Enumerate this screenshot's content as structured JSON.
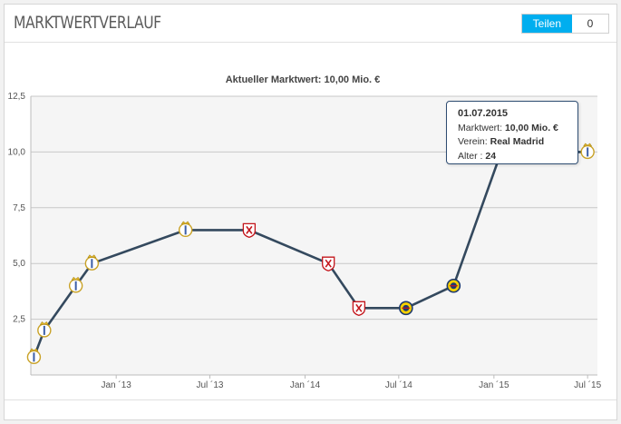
{
  "header": {
    "title": "MARKTWERTVERLAUF",
    "share_label": "Teilen",
    "share_count": "0"
  },
  "colors": {
    "line": "#34495e",
    "grid": "#c8c8c8",
    "plot_background": "#f5f5f5",
    "share_accent": "#00aeef"
  },
  "chart_data": {
    "type": "line",
    "title": "Aktueller Marktwert: 10,00 Mio. €",
    "xlabel": "",
    "ylabel": "",
    "ylim": [
      0,
      12.5
    ],
    "xlim": [
      "2012-07-20",
      "2015-07-20"
    ],
    "y_ticks": [
      2.5,
      5.0,
      7.5,
      10.0,
      12.5
    ],
    "y_tick_labels": [
      "2,5",
      "5,0",
      "7,5",
      "10,0",
      "12,5"
    ],
    "x_ticks": [
      "2013-01-01",
      "2013-07-01",
      "2014-01-01",
      "2014-07-01",
      "2015-01-01",
      "2015-07-01"
    ],
    "x_tick_labels": [
      "Jan ´13",
      "Jul ´13",
      "Jan ´14",
      "Jul ´14",
      "Jan ´15",
      "Jul ´15"
    ],
    "grid": true,
    "legend": "none",
    "series": [
      {
        "points": [
          {
            "date": "2012-07-26",
            "value": 0.8,
            "club": "real-madrid"
          },
          {
            "date": "2012-08-15",
            "value": 2.0,
            "club": "real-madrid"
          },
          {
            "date": "2012-10-15",
            "value": 4.0,
            "club": "real-madrid"
          },
          {
            "date": "2012-11-15",
            "value": 5.0,
            "club": "real-madrid"
          },
          {
            "date": "2013-05-15",
            "value": 6.5,
            "club": "real-madrid"
          },
          {
            "date": "2013-09-15",
            "value": 6.5,
            "club": "sevilla"
          },
          {
            "date": "2014-02-15",
            "value": 5.0,
            "club": "sevilla"
          },
          {
            "date": "2014-04-15",
            "value": 3.0,
            "club": "sevilla"
          },
          {
            "date": "2014-07-15",
            "value": 3.0,
            "club": "villarreal"
          },
          {
            "date": "2014-10-15",
            "value": 4.0,
            "club": "villarreal"
          },
          {
            "date": "2015-01-15",
            "value": 10.0,
            "club": "real-madrid"
          },
          {
            "date": "2015-07-01",
            "value": 10.0,
            "club": "real-madrid"
          }
        ]
      }
    ],
    "tooltip": {
      "date": "01.07.2015",
      "value_label": "Marktwert:",
      "value": "10,00 Mio. €",
      "club_label": "Verein:",
      "club": "Real Madrid",
      "age_label": "Alter :",
      "age": "24"
    }
  }
}
